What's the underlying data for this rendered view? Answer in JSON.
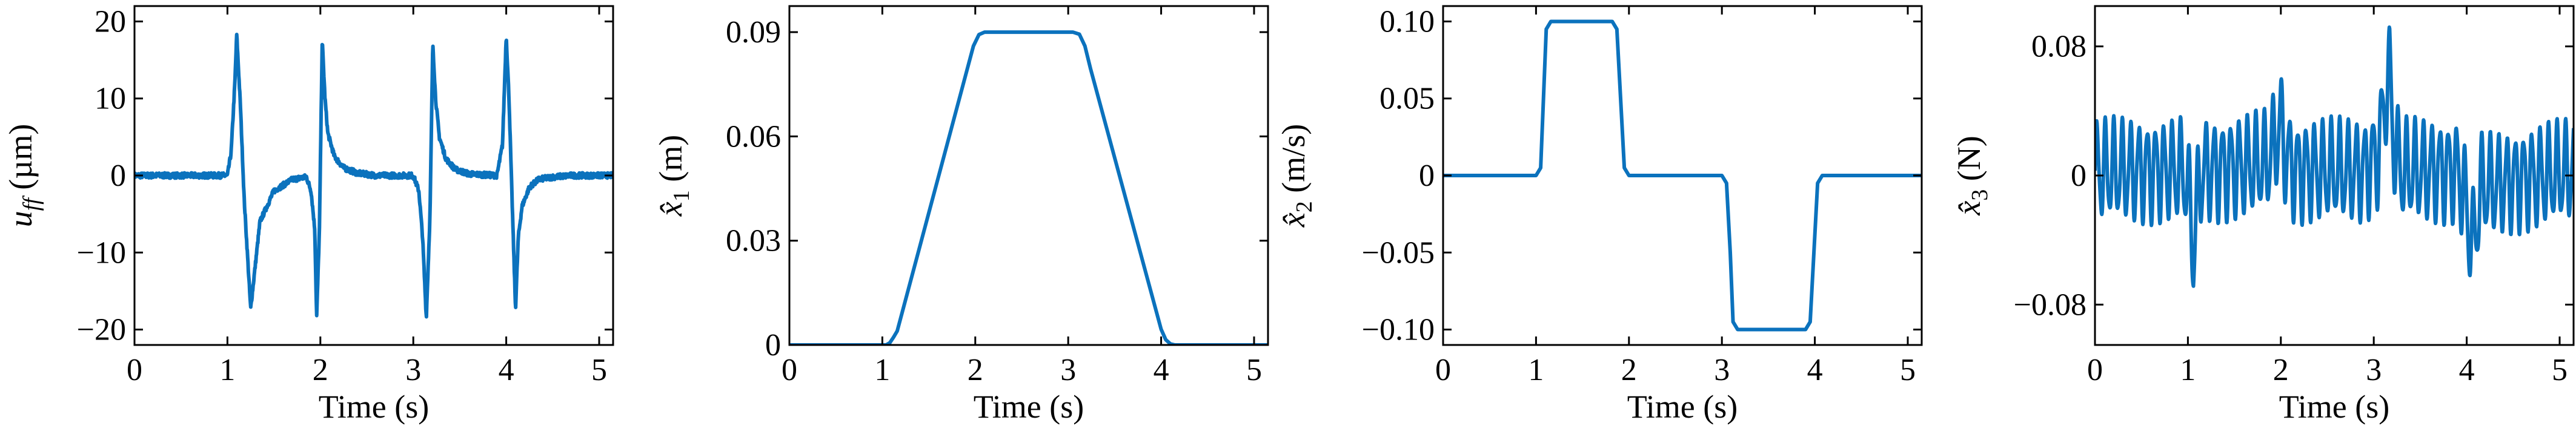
{
  "colors": {
    "line": "#0b72bd",
    "axes": "#000000"
  },
  "chart_data": [
    {
      "type": "line",
      "xlabel": "Time (s)",
      "ylabel": {
        "base": "u",
        "sub": "ff",
        "unit": " (µm)"
      },
      "xlim": [
        0,
        5.15
      ],
      "ylim": [
        -22,
        22
      ],
      "xticks": [
        0,
        1,
        2,
        3,
        4,
        5
      ],
      "yticks": [
        -20,
        -10,
        0,
        10,
        20
      ],
      "ytick_labels": [
        "−20",
        "−10",
        "0",
        "10",
        "20"
      ],
      "noise": 0.35,
      "series": [
        {
          "x": [
            0,
            1.0,
            1.04,
            1.08,
            1.1,
            1.14,
            1.18,
            1.25,
            1.35,
            1.5,
            1.7,
            1.85,
            1.9,
            1.94,
            1.96,
            1.99,
            2.02,
            2.05,
            2.08,
            2.15,
            2.25,
            2.4,
            2.6,
            3.0,
            3.06,
            3.1,
            3.14,
            3.18,
            3.21,
            3.24,
            3.28,
            3.35,
            3.45,
            3.6,
            3.9,
            3.96,
            4.0,
            4.03,
            4.06,
            4.1,
            4.13,
            4.17,
            4.25,
            4.35,
            4.5,
            4.7,
            5.15
          ],
          "y": [
            0,
            0,
            3,
            12,
            18.3,
            9,
            -3,
            -17.3,
            -6,
            -2,
            -0.5,
            -0.2,
            -2,
            -7,
            -18.5,
            -7,
            17.5,
            10,
            5.5,
            2.5,
            1.0,
            0.3,
            0,
            0,
            -2,
            -8,
            -18.5,
            -5,
            17.2,
            10,
            5,
            2.2,
            0.8,
            0.2,
            0,
            4,
            18.2,
            10,
            -2,
            -17.3,
            -8,
            -4,
            -1.5,
            -0.5,
            -0.2,
            0,
            0
          ]
        }
      ]
    },
    {
      "type": "line",
      "xlabel": "Time (s)",
      "ylabel": {
        "base": "x",
        "hat": true,
        "sub": "1",
        "unit": " (m)"
      },
      "xlim": [
        0,
        5.15
      ],
      "ylim": [
        0,
        0.0975
      ],
      "xticks": [
        0,
        1,
        2,
        3,
        4,
        5
      ],
      "yticks": [
        0,
        0.03,
        0.06,
        0.09
      ],
      "ytick_labels": [
        "0",
        "0.03",
        "0.06",
        "0.09"
      ],
      "series": [
        {
          "x": [
            0,
            1.04,
            1.08,
            1.12,
            1.16,
            1.9,
            1.98,
            2.04,
            2.1,
            3.05,
            3.12,
            3.18,
            3.24,
            4.0,
            4.05,
            4.1,
            4.15,
            5.15
          ],
          "y": [
            0,
            0,
            0.0006,
            0.0022,
            0.004,
            0.078,
            0.086,
            0.0893,
            0.09,
            0.09,
            0.0894,
            0.086,
            0.0795,
            0.0045,
            0.0015,
            0.0003,
            0,
            0
          ]
        }
      ]
    },
    {
      "type": "line",
      "xlabel": "Time (s)",
      "ylabel": {
        "base": "x",
        "hat": true,
        "sub": "2",
        "unit": " (m/s)"
      },
      "xlim": [
        0,
        5.15
      ],
      "ylim": [
        -0.11,
        0.11
      ],
      "xticks": [
        0,
        1,
        2,
        3,
        4,
        5
      ],
      "yticks": [
        -0.1,
        -0.05,
        0,
        0.05,
        0.1
      ],
      "ytick_labels": [
        "−0.10",
        "−0.05",
        "0",
        "0.05",
        "0.10"
      ],
      "series": [
        {
          "x": [
            0,
            1.0,
            1.05,
            1.08,
            1.11,
            1.16,
            1.82,
            1.87,
            1.91,
            1.95,
            2.0,
            3.0,
            3.05,
            3.09,
            3.12,
            3.17,
            3.9,
            3.95,
            3.99,
            4.03,
            4.08,
            5.15
          ],
          "y": [
            0,
            0,
            0.005,
            0.05,
            0.095,
            0.1,
            0.1,
            0.095,
            0.05,
            0.005,
            0,
            0,
            -0.005,
            -0.05,
            -0.095,
            -0.1,
            -0.1,
            -0.095,
            -0.05,
            -0.005,
            0,
            0
          ]
        }
      ]
    },
    {
      "type": "line",
      "xlabel": "Time (s)",
      "ylabel": {
        "base": "x",
        "hat": true,
        "sub": "3",
        "unit": " (N)"
      },
      "xlim": [
        0,
        5.15
      ],
      "ylim": [
        -0.105,
        0.105
      ],
      "xticks": [
        0,
        1,
        2,
        3,
        4,
        5
      ],
      "yticks": [
        -0.08,
        0,
        0.08
      ],
      "ytick_labels": [
        "−0.08",
        "0",
        "0.08"
      ],
      "oscillation": {
        "period": 0.09,
        "amplitude": 0.028,
        "offset": 0.003
      },
      "series": [
        {
          "x": [
            0,
            0.95,
            1.0,
            1.06,
            1.1,
            1.15,
            1.25,
            1.85,
            1.95,
            2.0,
            2.05,
            2.15,
            2.9,
            3.05,
            3.12,
            3.17,
            3.22,
            3.3,
            3.9,
            3.98,
            4.02,
            4.08,
            4.15,
            5.15
          ],
          "y": [
            0,
            0,
            -0.01,
            -0.05,
            -0.02,
            0,
            0,
            0.005,
            0.02,
            0.03,
            0.01,
            0,
            0,
            0.01,
            0.045,
            0.06,
            0.015,
            0,
            0,
            -0.015,
            -0.035,
            -0.045,
            -0.01,
            0
          ]
        }
      ]
    }
  ]
}
